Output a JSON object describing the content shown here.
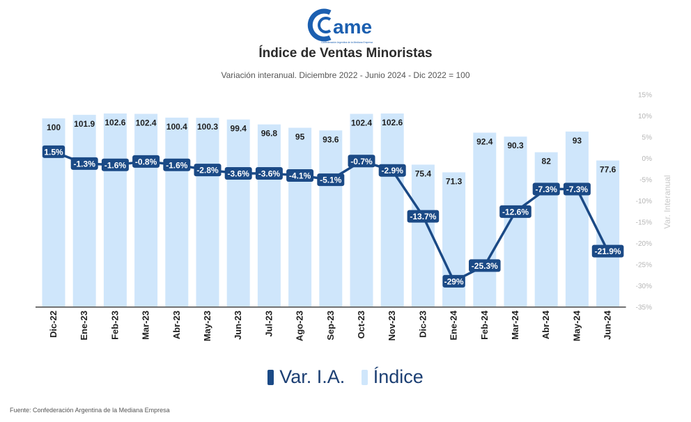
{
  "logo": {
    "text": "ame",
    "tagline": "Confederación Argentina de la Mediana Empresa"
  },
  "title": "Índice de Ventas Minoristas",
  "subtitle": "Variación interanual. Diciembre 2022 - Junio 2024 - Dic 2022 = 100",
  "source": "Fuente: Confederación Argentina de la Mediana Empresa",
  "colors": {
    "bar": "#cfe6fb",
    "line": "#1b4a86",
    "label_bg": "#1b4a86",
    "axis_text": "#b5b5b5"
  },
  "chart_data": {
    "type": "bar",
    "categories": [
      "Dic-22",
      "Ene-23",
      "Feb-23",
      "Mar-23",
      "Abr-23",
      "May-23",
      "Jun-23",
      "Jul-23",
      "Ago-23",
      "Sep-23",
      "Oct-23",
      "Nov-23",
      "Dic-23",
      "Ene-24",
      "Feb-24",
      "Mar-24",
      "Abr-24",
      "May-24",
      "Jun-24"
    ],
    "series": [
      {
        "name": "Índice",
        "type": "bar",
        "axis": "left",
        "values": [
          100,
          101.9,
          102.6,
          102.4,
          100.4,
          100.3,
          99.4,
          96.8,
          95,
          93.6,
          102.4,
          102.6,
          75.4,
          71.3,
          92.4,
          90.3,
          82,
          93,
          77.6
        ],
        "labels": [
          "100",
          "101.9",
          "102.6",
          "102.4",
          "100.4",
          "100.3",
          "99.4",
          "96.8",
          "95",
          "93.6",
          "102.4",
          "102.6",
          "75.4",
          "71.3",
          "92.4",
          "90.3",
          "82",
          "93",
          "77.6"
        ]
      },
      {
        "name": "Var. I.A.",
        "type": "line",
        "axis": "right",
        "values": [
          1.5,
          -1.3,
          -1.6,
          -0.8,
          -1.6,
          -2.8,
          -3.6,
          -3.6,
          -4.1,
          -5.1,
          -0.7,
          -2.9,
          -13.7,
          -29,
          -25.3,
          -12.6,
          -7.3,
          -7.3,
          -21.9
        ],
        "labels": [
          "1.5%",
          "-1.3%",
          "-1.6%",
          "-0.8%",
          "-1.6%",
          "-2.8%",
          "-3.6%",
          "-3.6%",
          "-4.1%",
          "-5.1%",
          "-0.7%",
          "-2.9%",
          "-13.7%",
          "-29%",
          "-25.3%",
          "-12.6%",
          "-7.3%",
          "-7.3%",
          "-21.9%"
        ]
      }
    ],
    "y2label": "Var. Interanual",
    "y2ticks": [
      "15%",
      "10%",
      "5%",
      "0%",
      "-5%",
      "-10%",
      "-15%",
      "-20%",
      "-25%",
      "-30%",
      "-35%"
    ],
    "y2lim": [
      -35,
      15
    ],
    "legend": {
      "position": "bottom",
      "items": [
        "Var. I.A.",
        "Índice"
      ]
    }
  }
}
